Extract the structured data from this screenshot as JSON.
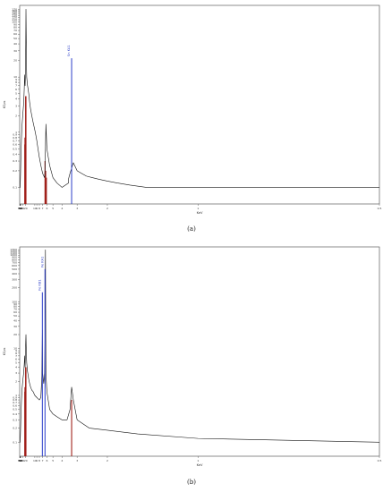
{
  "figure": {
    "caption_a": "(a)",
    "caption_b": "(b)"
  },
  "chart_data": [
    {
      "type": "line",
      "panel": "(a)",
      "xlabel": "KeV",
      "ylabel": "KCps",
      "x_direction": "reversed",
      "xlim": [
        0.5,
        60
      ],
      "x_scale": "reciprocal",
      "xtick_labels": [
        "60",
        "56",
        "54",
        "52",
        "50",
        "40",
        "30",
        "20",
        "10",
        "9",
        "8",
        "7",
        "6",
        "5",
        "4",
        "3",
        "2",
        "1",
        "0.5"
      ],
      "xtick_values": [
        60,
        56,
        54,
        52,
        50,
        40,
        30,
        20,
        10,
        9,
        8,
        7,
        6,
        5,
        4,
        3,
        2,
        1,
        0.5
      ],
      "y_scale": "log",
      "ylim": [
        0.05,
        200
      ],
      "ytick_values": [
        0.1,
        0.2,
        0.3,
        0.4,
        0.5,
        0.6,
        0.7,
        0.8,
        0.9,
        1,
        2,
        3,
        4,
        5,
        6,
        7,
        8,
        9,
        10,
        20,
        30,
        40,
        50,
        60,
        70,
        80,
        90,
        100,
        110,
        120,
        130,
        140,
        150,
        160,
        170
      ],
      "grid": false,
      "series": [
        {
          "color": "#111111",
          "x": [
            60,
            58,
            56,
            54,
            52,
            50,
            48,
            46,
            44,
            42,
            40,
            38,
            36,
            34,
            32,
            30,
            28,
            26,
            25,
            24,
            23,
            22.5,
            22,
            21.5,
            21,
            20.5,
            20,
            19.5,
            19,
            18.5,
            18,
            17,
            16,
            15,
            14,
            13,
            12,
            11,
            10,
            9.5,
            9,
            8.5,
            8,
            7.5,
            7,
            6.5,
            6.4,
            6.3,
            6.2,
            6,
            5.5,
            5,
            4.5,
            4,
            3.5,
            3.5,
            3.45,
            3.4,
            3.35,
            3.3,
            3.25,
            3.2,
            3,
            2.8,
            2.6,
            2.4,
            2.2,
            2,
            1.8,
            1.6,
            1.4,
            1.2,
            1,
            0.8,
            0.6,
            0.5
          ],
          "y": [
            0.1,
            0.1,
            0.1,
            0.1,
            0.1,
            0.12,
            0.15,
            0.2,
            0.3,
            0.4,
            0.55,
            0.75,
            1.0,
            1.3,
            1.6,
            2.0,
            2.5,
            3.3,
            4.2,
            6,
            9,
            11,
            9,
            7,
            9,
            14,
            40,
            170,
            60,
            17,
            10,
            7.5,
            6.2,
            5,
            3.5,
            2.6,
            2,
            1.5,
            1.1,
            0.9,
            0.7,
            0.5,
            0.35,
            0.25,
            0.18,
            0.15,
            0.2,
            0.5,
            1.4,
            0.5,
            0.25,
            0.15,
            0.12,
            0.1,
            0.12,
            0.14,
            0.16,
            0.18,
            0.2,
            0.22,
            0.25,
            0.28,
            0.2,
            0.18,
            0.16,
            0.15,
            0.14,
            0.13,
            0.12,
            0.11,
            0.1,
            0.1,
            0.1,
            0.1,
            0.1,
            0.1
          ]
        }
      ],
      "marker_lines": [
        {
          "color": "#a0201a",
          "x": [
            22.4,
            21.9,
            21.0,
            20.3,
            19.5
          ],
          "y": [
            0.6,
            0.8,
            0.4,
            4.5,
            4.5
          ]
        },
        {
          "color": "#a0201a",
          "x": [
            6.4,
            6.25,
            6.1
          ],
          "y": [
            0.3,
            0.2,
            0.15
          ]
        }
      ],
      "highlight_peaks": [
        {
          "color": "#2a3cc8",
          "x": 3.3,
          "y": 22,
          "label": "Sn KA1"
        }
      ]
    },
    {
      "type": "line",
      "panel": "(b)",
      "xlabel": "KeV",
      "ylabel": "KCps",
      "x_direction": "reversed",
      "xlim": [
        0.5,
        60
      ],
      "x_scale": "reciprocal",
      "xtick_labels": [
        "60",
        "56",
        "54",
        "52",
        "50",
        "40",
        "30",
        "20",
        "10",
        "9",
        "8",
        "7",
        "6",
        "5",
        "4",
        "3",
        "2",
        "1",
        "0.5"
      ],
      "xtick_values": [
        60,
        56,
        54,
        52,
        50,
        40,
        30,
        20,
        10,
        9,
        8,
        7,
        6,
        5,
        4,
        3,
        2,
        1,
        0.5
      ],
      "y_scale": "log",
      "ylim": [
        0.05,
        1500
      ],
      "ytick_values": [
        0.1,
        0.2,
        0.3,
        0.4,
        0.5,
        0.6,
        0.7,
        0.8,
        0.9,
        1,
        2,
        3,
        4,
        5,
        6,
        7,
        8,
        9,
        10,
        20,
        30,
        40,
        50,
        60,
        70,
        80,
        90,
        100,
        200,
        300,
        400,
        500,
        600,
        700,
        800,
        900,
        1000,
        1100,
        1200,
        1300
      ],
      "grid": false,
      "series": [
        {
          "color": "#111111",
          "x": [
            60,
            58,
            56,
            54,
            52,
            50,
            48,
            46,
            44,
            42,
            40,
            38,
            36,
            34,
            32,
            30,
            28,
            26,
            24,
            23,
            22.5,
            22,
            21.5,
            21,
            20.5,
            20,
            19.5,
            19,
            18.5,
            18,
            17,
            16,
            15,
            14,
            13,
            12,
            11,
            10,
            9,
            8.5,
            8,
            7.5,
            7.2,
            7.06,
            7,
            6.7,
            6.5,
            6.4,
            6.3,
            6.2,
            6,
            5.5,
            5,
            4.5,
            4,
            3.6,
            3.4,
            3.3,
            3.2,
            3,
            2.5,
            2,
            1.5,
            1,
            0.5
          ],
          "y": [
            0.1,
            0.1,
            0.1,
            0.1,
            0.1,
            0.12,
            0.15,
            0.2,
            0.3,
            0.4,
            0.55,
            0.75,
            1.0,
            1.3,
            1.6,
            2.0,
            2.4,
            3,
            4.5,
            6,
            7,
            5.5,
            4,
            6,
            9,
            14,
            20,
            11,
            7,
            5,
            3.5,
            2.8,
            2.2,
            1.8,
            1.5,
            1.3,
            1.2,
            1,
            0.9,
            0.85,
            0.8,
            0.9,
            2.5,
            25,
            3,
            1.8,
            3,
            15,
            1300,
            3,
            1.2,
            0.5,
            0.4,
            0.35,
            0.3,
            0.3,
            0.5,
            1.5,
            0.8,
            0.3,
            0.2,
            0.18,
            0.15,
            0.12,
            0.1
          ]
        }
      ],
      "marker_lines": [
        {
          "color": "#a0201a",
          "x": [
            22.4,
            21.9,
            21.0,
            20.3,
            19.5
          ],
          "y": [
            1.2,
            1.5,
            1.0,
            4,
            4
          ]
        },
        {
          "color": "#a0201a",
          "x": [
            3.3
          ],
          "y": [
            0.8
          ]
        }
      ],
      "highlight_peaks": [
        {
          "color": "#2a3cc8",
          "x": 7.06,
          "y": 160,
          "label": "Fe KB1"
        },
        {
          "color": "#2a3cc8",
          "x": 6.4,
          "y": 500,
          "label": "Fe KA1"
        }
      ]
    }
  ]
}
